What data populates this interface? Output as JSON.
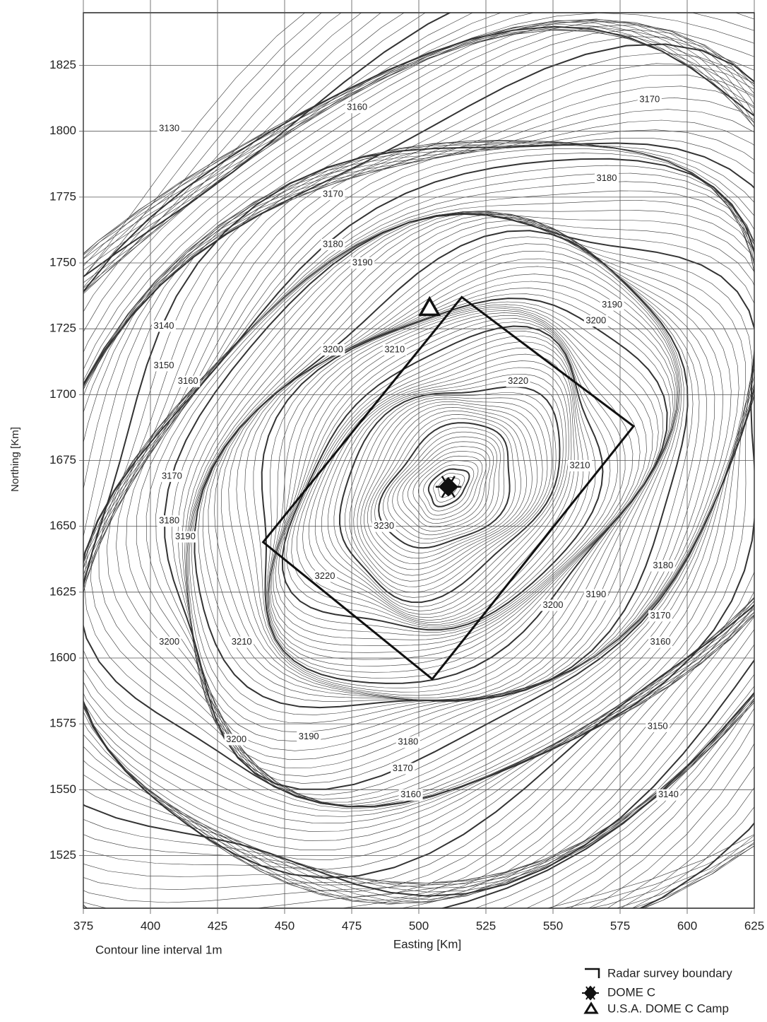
{
  "chart_data": {
    "type": "contour",
    "xlabel": "Easting [Km]",
    "ylabel": "Northing [Km]",
    "note": "Contour line interval 1m",
    "xlim": [
      375,
      625
    ],
    "ylim": [
      1505,
      1845
    ],
    "xticks": [
      375,
      400,
      425,
      450,
      475,
      500,
      525,
      550,
      575,
      600,
      625
    ],
    "yticks": [
      1525,
      1550,
      1575,
      1600,
      1625,
      1650,
      1675,
      1700,
      1725,
      1750,
      1775,
      1800,
      1825
    ],
    "grid": true,
    "contour_labels": {
      "values": [
        3130,
        3160,
        3170,
        3180,
        3170,
        3180,
        3190,
        3190,
        3200,
        3140,
        3150,
        3160,
        3200,
        3210,
        3220,
        3170,
        3180,
        3190,
        3230,
        3210,
        3220,
        3180,
        3190,
        3200,
        3170,
        3160,
        3200,
        3210,
        3200,
        3190,
        3180,
        3170,
        3160,
        3150,
        3140
      ],
      "x": [
        407,
        477,
        586,
        570,
        468,
        468,
        479,
        572,
        566,
        405,
        405,
        414,
        468,
        491,
        537,
        408,
        407,
        413,
        487,
        560,
        465,
        591,
        566,
        550,
        590,
        590,
        407,
        434,
        432,
        459,
        496,
        494,
        497,
        589,
        593
      ],
      "y": [
        1801,
        1809,
        1812,
        1782,
        1776,
        1757,
        1750,
        1734,
        1728,
        1726,
        1711,
        1705,
        1717,
        1717,
        1705,
        1669,
        1652,
        1646,
        1650,
        1673,
        1631,
        1635,
        1624,
        1620,
        1616,
        1606,
        1606,
        1606,
        1569,
        1570,
        1568,
        1558,
        1548,
        1574,
        1548
      ]
    },
    "boundary": {
      "name": "Radar survey boundary",
      "x": [
        516,
        580,
        505,
        442
      ],
      "y": [
        1737,
        1688,
        1592,
        1644
      ]
    },
    "dome": {
      "name": "DOME C",
      "x": 511,
      "y": 1665
    },
    "camp": {
      "name": "U.S.A. DOME C Camp",
      "x": 504,
      "y": 1733
    }
  }
}
